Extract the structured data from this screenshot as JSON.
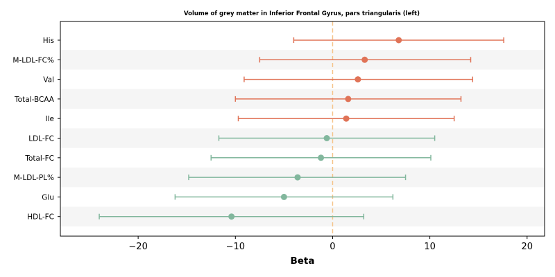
{
  "chart_data": {
    "type": "forest",
    "title": "Volume of grey matter in Inferior Frontal Gyrus, pars triangularis (left)",
    "xlabel": "Beta",
    "xlim": [
      -28,
      21.8
    ],
    "xticks": [
      -20,
      -10,
      0,
      10,
      20
    ],
    "xtick_labels": [
      "−20",
      "−10",
      "0",
      "10",
      "20"
    ],
    "reference_line": 0,
    "colors": {
      "positive": "#e07357",
      "negative": "#82b79d",
      "reference": "#f5c48a",
      "band": "#f5f5f5"
    },
    "rows": [
      {
        "label": "His",
        "beta": 6.8,
        "ci_low": -4.0,
        "ci_high": 17.6
      },
      {
        "label": "M-LDL-FC%",
        "beta": 3.3,
        "ci_low": -7.5,
        "ci_high": 14.2
      },
      {
        "label": "Val",
        "beta": 2.6,
        "ci_low": -9.1,
        "ci_high": 14.4
      },
      {
        "label": "Total-BCAA",
        "beta": 1.6,
        "ci_low": -10.0,
        "ci_high": 13.2
      },
      {
        "label": "Ile",
        "beta": 1.4,
        "ci_low": -9.7,
        "ci_high": 12.5
      },
      {
        "label": "LDL-FC",
        "beta": -0.6,
        "ci_low": -11.7,
        "ci_high": 10.5
      },
      {
        "label": "Total-FC",
        "beta": -1.2,
        "ci_low": -12.5,
        "ci_high": 10.1
      },
      {
        "label": "M-LDL-PL%",
        "beta": -3.6,
        "ci_low": -14.8,
        "ci_high": 7.5
      },
      {
        "label": "Glu",
        "beta": -5.0,
        "ci_low": -16.2,
        "ci_high": 6.2
      },
      {
        "label": "HDL-FC",
        "beta": -10.4,
        "ci_low": -24.0,
        "ci_high": 3.2
      }
    ]
  }
}
